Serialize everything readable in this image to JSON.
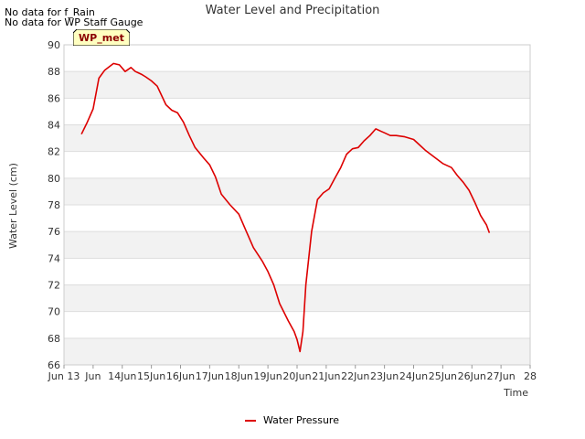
{
  "notes": [
    "No data for f_Rain",
    "No data for WP Staff Gauge"
  ],
  "badge_label": "WP_met",
  "colors": {
    "series": "#dd0000",
    "band": "#f2f2f2",
    "badge_bg": "#ffffc0",
    "badge_text": "#8b0000"
  },
  "chart_data": {
    "type": "line",
    "title": "Water Level and Precipitation",
    "xlabel": "Time",
    "ylabel": "Water Level (cm)",
    "xlim": [
      12,
      28
    ],
    "ylim": [
      66,
      90
    ],
    "yticks": [
      66,
      68,
      70,
      72,
      74,
      76,
      78,
      80,
      82,
      84,
      86,
      88,
      90
    ],
    "xticks": [
      {
        "v": 12,
        "label": "Jun 13"
      },
      {
        "v": 13,
        "label": "Jun"
      },
      {
        "v": 14,
        "label": "14Jun"
      },
      {
        "v": 15,
        "label": "15Jun"
      },
      {
        "v": 16,
        "label": "16Jun"
      },
      {
        "v": 17,
        "label": "17Jun"
      },
      {
        "v": 18,
        "label": "18Jun"
      },
      {
        "v": 19,
        "label": "19Jun"
      },
      {
        "v": 20,
        "label": "20Jun"
      },
      {
        "v": 21,
        "label": "21Jun"
      },
      {
        "v": 22,
        "label": "22Jun"
      },
      {
        "v": 23,
        "label": "23Jun"
      },
      {
        "v": 24,
        "label": "24Jun"
      },
      {
        "v": 25,
        "label": "25Jun"
      },
      {
        "v": 26,
        "label": "26Jun"
      },
      {
        "v": 27,
        "label": "27Jun"
      },
      {
        "v": 28,
        "label": "28"
      }
    ],
    "grid": true,
    "legend_position": "bottom-center",
    "series": [
      {
        "name": "Water Pressure",
        "x": [
          12.6,
          12.8,
          13.0,
          13.2,
          13.4,
          13.7,
          13.9,
          14.1,
          14.3,
          14.45,
          14.55,
          14.65,
          14.8,
          15.0,
          15.2,
          15.5,
          15.7,
          15.9,
          16.1,
          16.3,
          16.5,
          16.8,
          17.0,
          17.2,
          17.4,
          17.7,
          18.0,
          18.3,
          18.5,
          18.8,
          19.0,
          19.2,
          19.4,
          19.7,
          19.9,
          20.0,
          20.1,
          20.2,
          20.3,
          20.5,
          20.7,
          20.9,
          21.1,
          21.3,
          21.5,
          21.7,
          21.9,
          22.1,
          22.3,
          22.5,
          22.7,
          22.9,
          23.0,
          23.2,
          23.4,
          23.7,
          24.0,
          24.2,
          24.4,
          24.7,
          25.0,
          25.3,
          25.5,
          25.7,
          25.9,
          26.1,
          26.3,
          26.5,
          26.6
        ],
        "y": [
          83.3,
          84.2,
          85.2,
          87.5,
          88.1,
          88.6,
          88.5,
          88.0,
          88.3,
          88.0,
          87.9,
          87.8,
          87.6,
          87.3,
          86.9,
          85.5,
          85.1,
          84.9,
          84.2,
          83.2,
          82.3,
          81.5,
          81.0,
          80.1,
          78.8,
          78.0,
          77.3,
          75.8,
          74.8,
          73.8,
          73.0,
          72.0,
          70.6,
          69.3,
          68.5,
          67.9,
          67.0,
          68.5,
          72.0,
          76.0,
          78.4,
          78.9,
          79.2,
          80.0,
          80.8,
          81.8,
          82.2,
          82.3,
          82.8,
          83.2,
          83.7,
          83.5,
          83.4,
          83.2,
          83.2,
          83.1,
          82.9,
          82.5,
          82.1,
          81.6,
          81.1,
          80.8,
          80.2,
          79.7,
          79.1,
          78.2,
          77.2,
          76.5,
          75.9
        ]
      }
    ]
  }
}
